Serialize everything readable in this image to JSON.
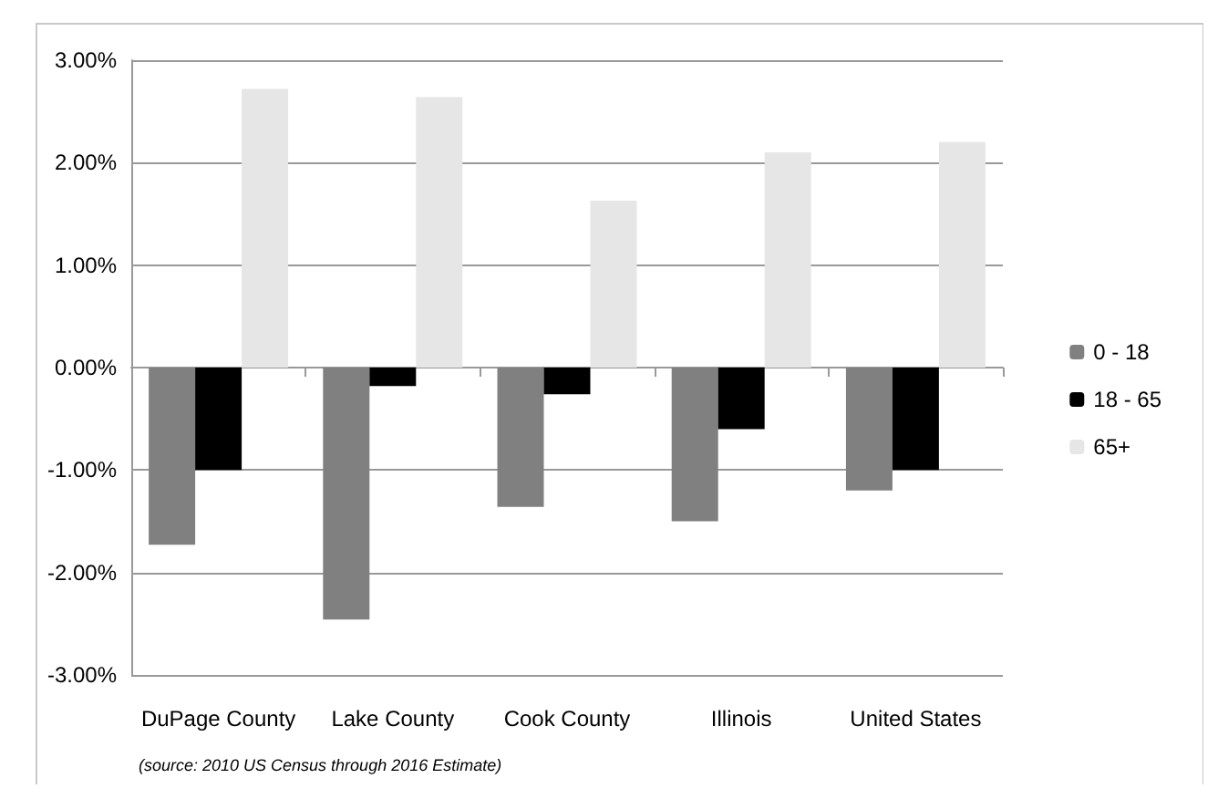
{
  "chart_data": {
    "type": "bar",
    "categories": [
      "DuPage County",
      "Lake County",
      "Cook County",
      "Illinois",
      "United States"
    ],
    "series": [
      {
        "name": "0 - 18",
        "color": "#808080",
        "values": [
          -1.73,
          -2.46,
          -1.36,
          -1.5,
          -1.2
        ]
      },
      {
        "name": "18 - 65",
        "color": "#000000",
        "values": [
          -1.0,
          -0.18,
          -0.26,
          -0.6,
          -1.0
        ]
      },
      {
        "name": "65+",
        "color": "#e6e6e6",
        "values": [
          2.72,
          2.64,
          1.63,
          2.1,
          2.2
        ]
      }
    ],
    "ylim": [
      -3,
      3
    ],
    "yticks": [
      {
        "value": -3,
        "label": "-3.00%"
      },
      {
        "value": -2,
        "label": "-2.00%"
      },
      {
        "value": -1,
        "label": "-1.00%"
      },
      {
        "value": 0,
        "label": "0.00%"
      },
      {
        "value": 1,
        "label": "1.00%"
      },
      {
        "value": 2,
        "label": "2.00%"
      },
      {
        "value": 3,
        "label": "3.00%"
      }
    ],
    "grid": "y",
    "legend": "right",
    "annotations": [
      "(source: 2010 US Census through 2016 Estimate)"
    ]
  }
}
